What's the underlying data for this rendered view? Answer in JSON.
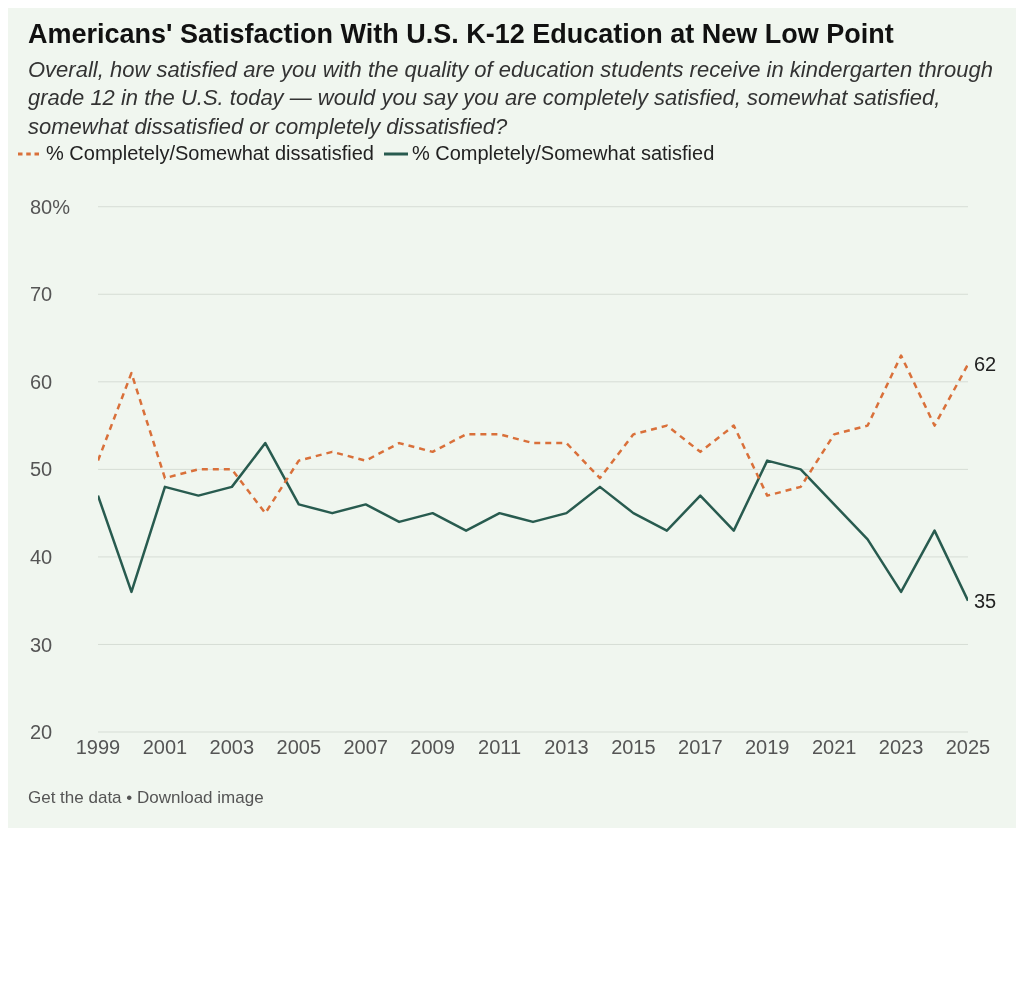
{
  "chart_data": {
    "type": "line",
    "title": "Americans' Satisfaction With U.S. K-12 Education at New Low Point",
    "subtitle": "Overall, how satisfied are you with the quality of education students receive in kindergarten through grade 12 in the U.S. today — would you say you are completely satisfied, somewhat satisfied, somewhat dissatisfied or completely dissatisfied?",
    "x": [
      1999,
      2000,
      2001,
      2002,
      2003,
      2004,
      2005,
      2006,
      2007,
      2008,
      2009,
      2010,
      2011,
      2012,
      2013,
      2014,
      2015,
      2016,
      2017,
      2018,
      2019,
      2020,
      2021,
      2022,
      2023,
      2024,
      2025
    ],
    "series": [
      {
        "name": "% Completely/Somewhat satisfied",
        "color": "#285b4f",
        "line_style": "solid",
        "values": [
          47,
          36,
          48,
          47,
          48,
          53,
          46,
          45,
          46,
          44,
          45,
          43,
          45,
          44,
          45,
          48,
          45,
          43,
          47,
          43,
          51,
          50,
          46,
          42,
          36,
          43,
          35
        ],
        "value_labels": [
          null,
          null,
          null,
          null,
          null,
          null,
          null,
          null,
          null,
          null,
          null,
          null,
          null,
          null,
          null,
          null,
          null,
          null,
          null,
          null,
          null,
          null,
          null,
          null,
          null,
          null,
          "35"
        ]
      },
      {
        "name": "% Completely/Somewhat dissatisfied",
        "color": "#d9703a",
        "line_style": "dashed",
        "values": [
          51,
          61,
          49,
          50,
          50,
          45,
          51,
          52,
          51,
          53,
          52,
          54,
          54,
          53,
          53,
          49,
          54,
          55,
          52,
          55,
          47,
          48,
          54,
          55,
          63,
          55,
          62
        ],
        "value_labels": [
          null,
          null,
          null,
          null,
          null,
          null,
          null,
          null,
          null,
          null,
          null,
          null,
          null,
          null,
          null,
          null,
          null,
          null,
          null,
          null,
          null,
          null,
          null,
          null,
          null,
          null,
          "62"
        ]
      }
    ],
    "xlim": [
      1999,
      2025
    ],
    "xticks": [
      1999,
      2001,
      2003,
      2005,
      2007,
      2009,
      2011,
      2013,
      2015,
      2017,
      2019,
      2021,
      2023,
      2025
    ],
    "ylim": [
      20,
      80
    ],
    "yticks": [
      20,
      30,
      40,
      50,
      60,
      70,
      {
        "value": 80,
        "label": "80%"
      }
    ],
    "grid": "y",
    "legend": "top left",
    "marker": "none",
    "annotations": [
      "Get the data • Download image"
    ]
  }
}
